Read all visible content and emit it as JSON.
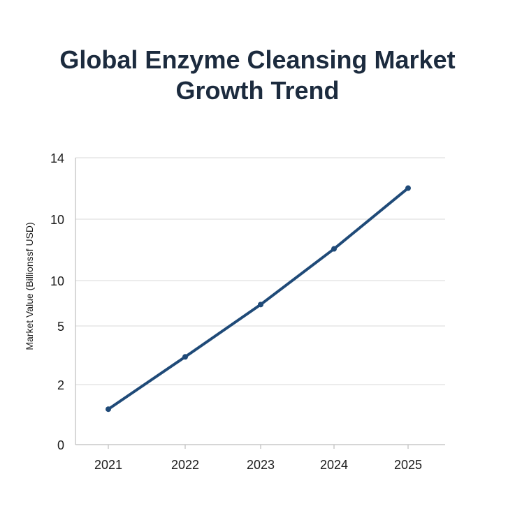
{
  "chart_data": {
    "type": "line",
    "title": [
      "Global Enzyme Cleansing Market",
      "Growth Trend"
    ],
    "xlabel": "",
    "ylabel": "Market Value (Billionssf USD)",
    "categories": [
      "2021",
      "2022",
      "2023",
      "2024",
      "2025"
    ],
    "y_tick_labels": [
      "0",
      "2",
      "5",
      "10",
      "10",
      "14"
    ],
    "series": [
      {
        "values": [
          2.1,
          5.2,
          8.3,
          11.6,
          15.2
        ]
      }
    ],
    "ylim": [
      0,
      17
    ],
    "grid": "horizontal",
    "colors": {
      "line": "#1f4a78",
      "grid": "#d9d9d9",
      "axis": "#bdbdbd",
      "title": "#1c2b3e"
    }
  }
}
